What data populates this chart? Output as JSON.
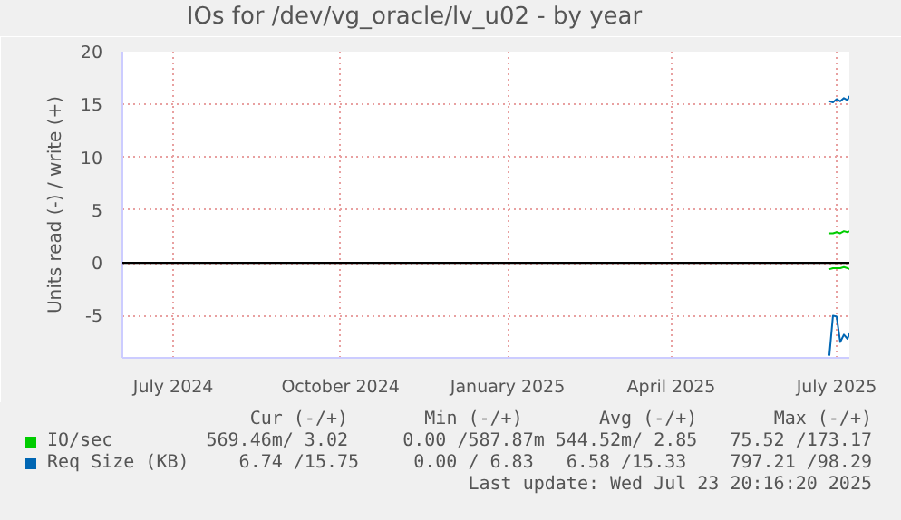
{
  "chart_data": {
    "type": "line",
    "title": "IOs for /dev/vg_oracle/lv_u02 - by year",
    "ylabel": "Units read (-) / write (+)",
    "xlim": [
      "2024-06-18",
      "2025-07-23"
    ],
    "ylim": [
      -9,
      20
    ],
    "yticks": [
      -5,
      0,
      5,
      10,
      15,
      20
    ],
    "xticks": [
      {
        "value": "2024-07-16",
        "label": "July 2024"
      },
      {
        "value": "2024-10-16",
        "label": "October 2024"
      },
      {
        "value": "2025-01-16",
        "label": "January 2025"
      },
      {
        "value": "2025-04-16",
        "label": "April 2025"
      },
      {
        "value": "2025-07-16",
        "label": "July 2025"
      }
    ],
    "grid": true,
    "legend": "bottom",
    "x": [
      "2025-07-12",
      "2025-07-14",
      "2025-07-16",
      "2025-07-18",
      "2025-07-20",
      "2025-07-22",
      "2025-07-23"
    ],
    "series": [
      {
        "name": "IO/sec",
        "color": "#00cc00",
        "values": [
          2.8,
          2.8,
          2.9,
          2.8,
          3.0,
          2.9,
          3.0
        ]
      },
      {
        "color": "#00cc00",
        "values": [
          -0.6,
          -0.5,
          -0.5,
          -0.5,
          -0.4,
          -0.5,
          -0.6
        ]
      },
      {
        "name": "Req Size (KB)",
        "color": "#0066b3",
        "values": [
          15.3,
          15.2,
          15.5,
          15.3,
          15.6,
          15.4,
          15.8
        ]
      },
      {
        "color": "#0066b3",
        "values": [
          -8.8,
          -5.0,
          -5.1,
          -7.5,
          -6.8,
          -7.2,
          -6.7
        ]
      }
    ],
    "ref_lines": [
      {
        "axis": "y",
        "value": 0,
        "color": "#000000"
      }
    ],
    "annotations": [
      "Cur (-/+)       Min (-/+)       Avg (-/+)       Max (-/+)",
      "569.46m/ 3.02     0.00 /587.87m 544.52m/ 2.85   75.52 /173.17",
      "6.74 /15.75     0.00 / 6.83   6.58 /15.33    797.21 /98.29",
      "Last update: Wed Jul 23 20:16:20 2025"
    ]
  }
}
